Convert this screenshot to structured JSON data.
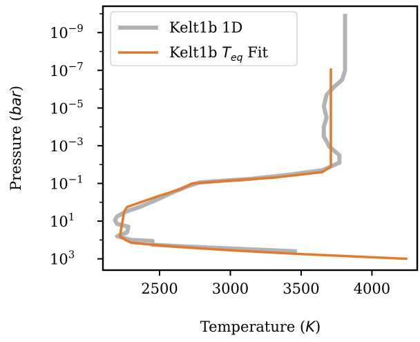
{
  "chart_data": {
    "type": "line",
    "xlabel": "Temperature (K)",
    "ylabel": "Pressure (bar)",
    "xlim": [
      2100,
      4320
    ],
    "ylim_log10": [
      3.6,
      -10.4
    ],
    "y_scale": "log",
    "y_inverted": true,
    "grid": false,
    "legend_position": "top-left",
    "x_ticks": [
      2500,
      3000,
      3500,
      4000
    ],
    "y_ticks": [
      {
        "base": "10",
        "exp": "−9",
        "log10": -9
      },
      {
        "base": "10",
        "exp": "−7",
        "log10": -7
      },
      {
        "base": "10",
        "exp": "−5",
        "log10": -5
      },
      {
        "base": "10",
        "exp": "−3",
        "log10": -3
      },
      {
        "base": "10",
        "exp": "−1",
        "log10": -1
      },
      {
        "base": "10",
        "exp": "1",
        "log10": 1
      },
      {
        "base": "10",
        "exp": "3",
        "log10": 3
      }
    ],
    "series": [
      {
        "name": "Kelt1b 1D",
        "color": "#b3b3b3",
        "points": [
          [
            3470,
            2.6
          ],
          [
            3300,
            2.55
          ],
          [
            3000,
            2.45
          ],
          [
            2700,
            2.35
          ],
          [
            2450,
            2.25
          ],
          [
            2450,
            2.05
          ],
          [
            2300,
            2.0
          ],
          [
            2200,
            1.8
          ],
          [
            2270,
            1.6
          ],
          [
            2280,
            1.3
          ],
          [
            2200,
            1.15
          ],
          [
            2185,
            0.95
          ],
          [
            2200,
            0.75
          ],
          [
            2260,
            0.5
          ],
          [
            2360,
            0.25
          ],
          [
            2500,
            -0.2
          ],
          [
            2600,
            -0.55
          ],
          [
            2700,
            -0.85
          ],
          [
            2780,
            -1.05
          ],
          [
            2900,
            -1.12
          ],
          [
            3150,
            -1.25
          ],
          [
            3400,
            -1.45
          ],
          [
            3650,
            -1.7
          ],
          [
            3770,
            -2.1
          ],
          [
            3770,
            -2.5
          ],
          [
            3700,
            -2.95
          ],
          [
            3660,
            -3.5
          ],
          [
            3660,
            -4.0
          ],
          [
            3680,
            -4.5
          ],
          [
            3660,
            -5.1
          ],
          [
            3680,
            -5.7
          ],
          [
            3730,
            -6.1
          ],
          [
            3790,
            -6.5
          ],
          [
            3810,
            -7.0
          ],
          [
            3810,
            -8.0
          ],
          [
            3810,
            -9.5
          ],
          [
            3810,
            -10.0
          ]
        ]
      },
      {
        "name": "Kelt1b Teq Fit",
        "color": "#e07b2e",
        "points": [
          [
            4250,
            3.0
          ],
          [
            3500,
            2.75
          ],
          [
            3000,
            2.55
          ],
          [
            2600,
            2.35
          ],
          [
            2300,
            2.15
          ],
          [
            2260,
            2.0
          ],
          [
            2220,
            1.8
          ],
          [
            2250,
            0.5
          ],
          [
            2270,
            0.25
          ],
          [
            2480,
            -0.3
          ],
          [
            2650,
            -0.7
          ],
          [
            2730,
            -1.0
          ],
          [
            3000,
            -1.15
          ],
          [
            3300,
            -1.3
          ],
          [
            3650,
            -1.6
          ],
          [
            3710,
            -1.9
          ],
          [
            3710,
            -4.0
          ],
          [
            3710,
            -7.1
          ]
        ]
      }
    ],
    "legend": [
      {
        "label_main": "Kelt1b 1D",
        "label_sub": ""
      },
      {
        "label_main": "Kelt1b ",
        "label_italic": "T",
        "label_sub": "eq",
        "label_tail": " Fit"
      }
    ]
  }
}
